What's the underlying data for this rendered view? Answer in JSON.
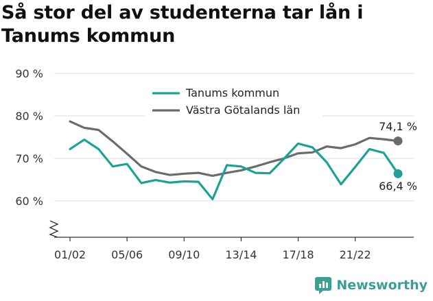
{
  "title": "Så stor del av studenterna tar lån i Tanums kommun",
  "brand": {
    "name": "Newsworthy",
    "icon": "newsworthy-logo-icon",
    "color": "#3aa192"
  },
  "chart_data": {
    "type": "line",
    "title": "Så stor del av studenterna tar lån i Tanums kommun",
    "xlabel": "",
    "ylabel": "",
    "ylim": [
      60,
      90
    ],
    "yticks": [
      60,
      70,
      80,
      90
    ],
    "ytick_labels": [
      "60 %",
      "70 %",
      "80 %",
      "90 %"
    ],
    "axis_break": true,
    "grid": true,
    "legend_placement": "top-center",
    "x": [
      "01/02",
      "02/03",
      "03/04",
      "04/05",
      "05/06",
      "06/07",
      "07/08",
      "08/09",
      "09/10",
      "10/11",
      "11/12",
      "12/13",
      "13/14",
      "14/15",
      "15/16",
      "16/17",
      "17/18",
      "18/19",
      "19/20",
      "20/21",
      "21/22",
      "22/23",
      "23/24",
      "24/25"
    ],
    "xtick_labels": [
      "01/02",
      "05/06",
      "09/10",
      "13/14",
      "17/18",
      "21/22"
    ],
    "series": [
      {
        "name": "Tanums kommun",
        "color": "#1aa394",
        "values": [
          72.2,
          74.4,
          72.2,
          68.1,
          68.7,
          64.2,
          64.9,
          64.3,
          64.6,
          64.5,
          60.4,
          68.4,
          68.1,
          66.6,
          66.5,
          69.9,
          73.5,
          72.6,
          69.1,
          63.9,
          68.0,
          72.2,
          71.3,
          66.4
        ],
        "end_label": "66,4 %"
      },
      {
        "name": "Västra Götalands län",
        "color": "#6b6a6e",
        "values": [
          78.7,
          77.2,
          76.7,
          74.0,
          71.1,
          68.1,
          66.8,
          66.1,
          66.4,
          66.6,
          65.9,
          66.6,
          67.2,
          68.1,
          69.1,
          70.0,
          71.2,
          71.4,
          72.8,
          72.4,
          73.3,
          74.8,
          74.5,
          74.1
        ],
        "end_label": "74,1 %"
      }
    ]
  }
}
